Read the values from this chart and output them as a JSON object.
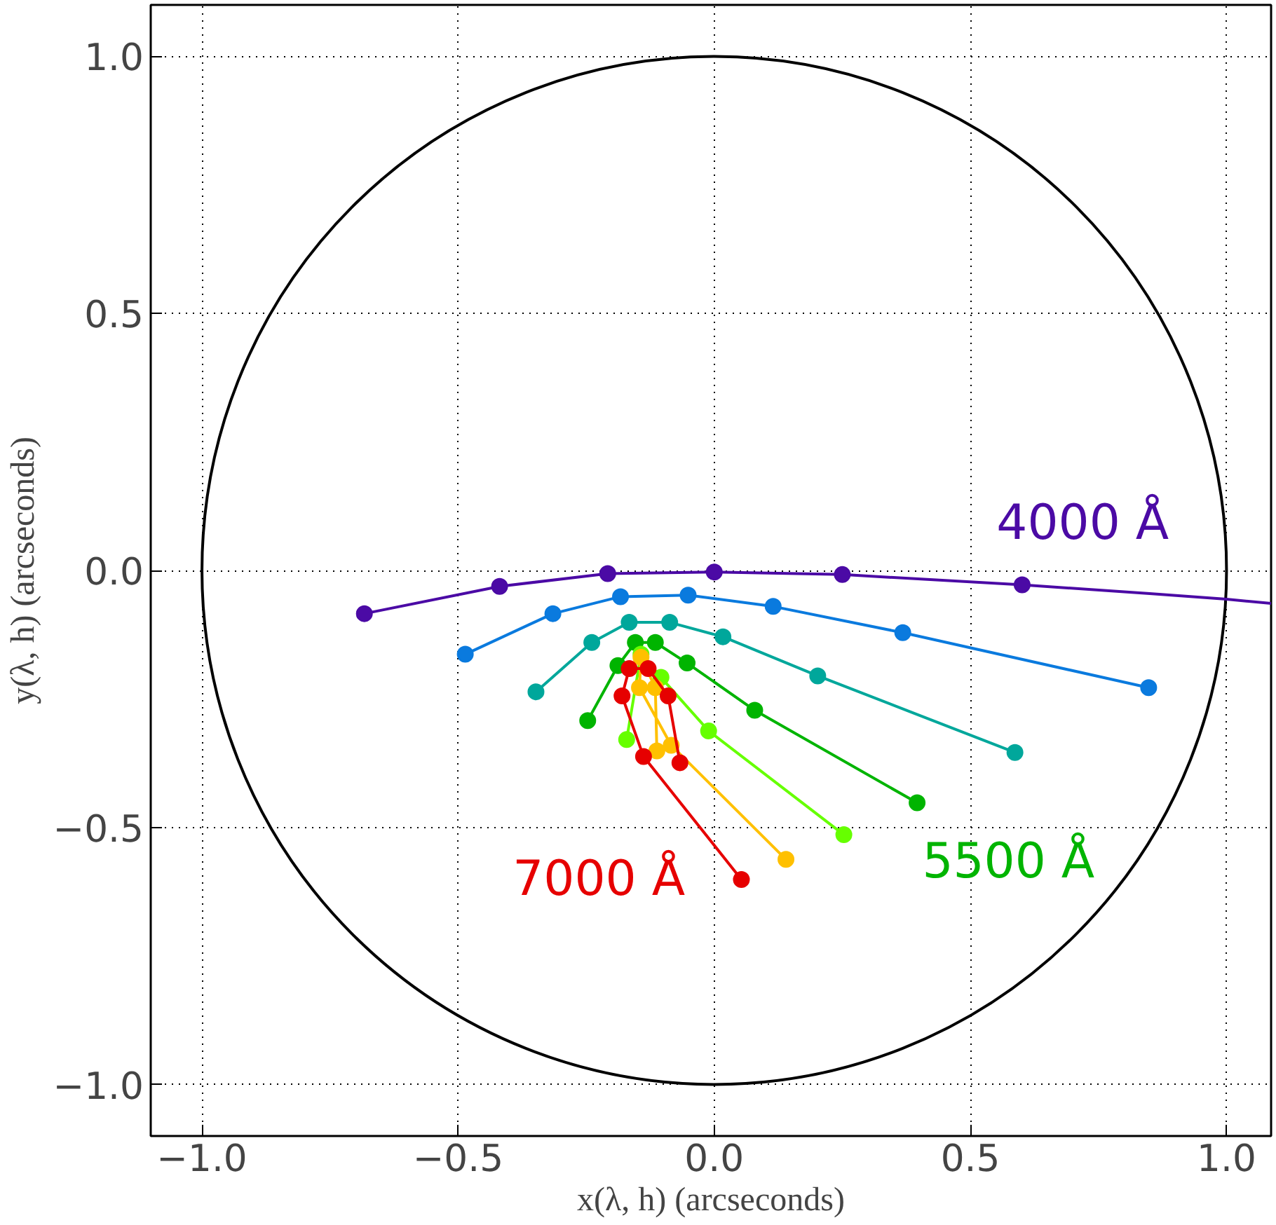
{
  "chart_data": {
    "type": "line",
    "xlabel": "x(λ, h) (arcseconds)",
    "ylabel": "y(λ, h) (arcseconds)",
    "xlim": [
      -1.1,
      1.087
    ],
    "ylim": [
      -1.1,
      1.1
    ],
    "xticks": [
      {
        "value": -1.0,
        "label": "−1.0"
      },
      {
        "value": -0.5,
        "label": "−0.5"
      },
      {
        "value": 0.0,
        "label": "0.0"
      },
      {
        "value": 0.5,
        "label": "0.5"
      },
      {
        "value": 1.0,
        "label": "1.0"
      }
    ],
    "yticks": [
      {
        "value": -1.0,
        "label": "−1.0"
      },
      {
        "value": -0.5,
        "label": "−0.5"
      },
      {
        "value": 0.0,
        "label": "0.0"
      },
      {
        "value": 0.5,
        "label": "0.5"
      },
      {
        "value": 1.0,
        "label": "1.0"
      }
    ],
    "grid": true,
    "marker": "circle",
    "line_style": "solid",
    "series": [
      {
        "color": "#4b0aa5",
        "marker": "none",
        "x": [
          0.601,
          0.85,
          1.0,
          1.087
        ],
        "values": [
          -0.028,
          -0.045,
          -0.056,
          -0.064
        ]
      },
      {
        "name": "4000 Å",
        "color": "#4b0aa5",
        "x": [
          -0.683,
          -0.419,
          -0.208,
          0.0,
          0.25,
          0.601
        ],
        "values": [
          -0.084,
          -0.031,
          -0.006,
          -0.003,
          -0.008,
          -0.028
        ]
      },
      {
        "color": "#0a7ade",
        "x": [
          -0.486,
          -0.315,
          -0.183,
          -0.051,
          0.115,
          0.368,
          0.848
        ],
        "values": [
          -0.163,
          -0.084,
          -0.051,
          -0.048,
          -0.07,
          -0.121,
          -0.228
        ]
      },
      {
        "color": "#00a79b",
        "x": [
          -0.348,
          -0.239,
          -0.166,
          -0.087,
          0.017,
          0.202,
          0.587
        ],
        "values": [
          -0.236,
          -0.14,
          -0.101,
          -0.101,
          -0.129,
          -0.205,
          -0.354
        ]
      },
      {
        "name": "5500 Å",
        "color": "#00b400",
        "x": [
          -0.247,
          -0.188,
          -0.154,
          -0.115,
          -0.053,
          0.079,
          0.396
        ],
        "values": [
          -0.292,
          -0.185,
          -0.14,
          -0.14,
          -0.18,
          -0.272,
          -0.452
        ]
      },
      {
        "color": "#66ff00",
        "x": [
          -0.171,
          -0.143,
          -0.104,
          -0.011,
          0.253
        ],
        "values": [
          -0.329,
          -0.163,
          -0.208,
          -0.312,
          -0.514
        ]
      },
      {
        "color": "#ffc000",
        "x": [
          -0.112,
          -0.115,
          -0.143,
          -0.146,
          -0.084,
          0.14
        ],
        "values": [
          -0.351,
          -0.228,
          -0.169,
          -0.228,
          -0.34,
          -0.562
        ]
      },
      {
        "name": "7000 Å",
        "color": "#e60000",
        "x": [
          -0.067,
          -0.09,
          -0.129,
          -0.166,
          -0.18,
          -0.138,
          0.053
        ],
        "values": [
          -0.374,
          -0.244,
          -0.191,
          -0.191,
          -0.244,
          -0.362,
          -0.601
        ]
      }
    ]
  }
}
